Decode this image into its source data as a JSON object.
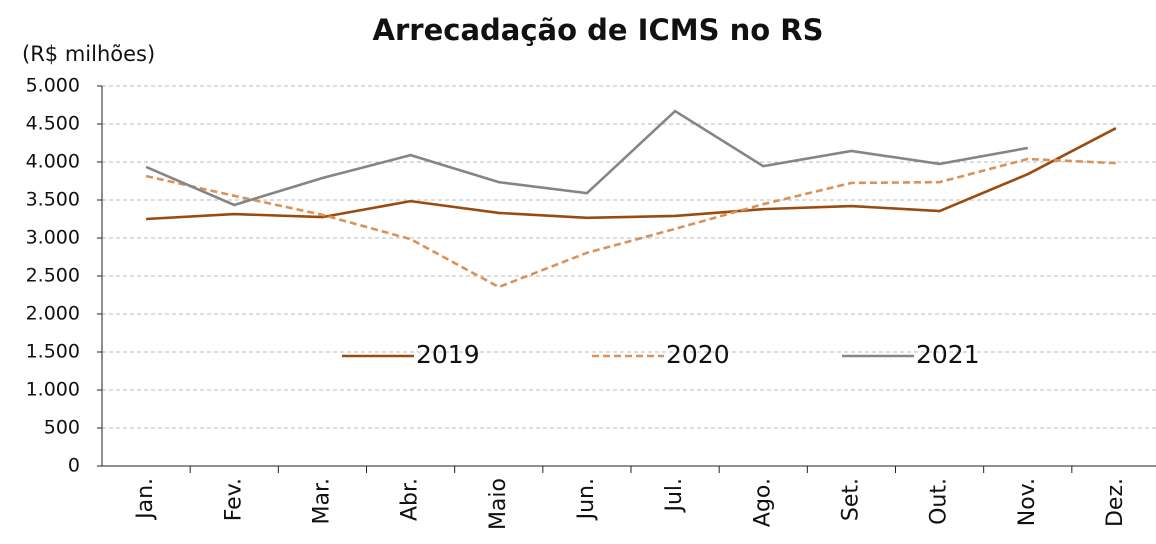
{
  "chart_data": {
    "type": "line",
    "title": "Arrecadação de ICMS no RS",
    "y_label": "(R$ milhões)",
    "categories": [
      "Jan.",
      "Fev.",
      "Mar.",
      "Abr.",
      "Maio",
      "Jun.",
      "Jul.",
      "Ago.",
      "Set.",
      "Out.",
      "Nov.",
      "Dez."
    ],
    "series": [
      {
        "name": "2019",
        "color": "#9a4c10",
        "dash": false,
        "values": [
          3250,
          3315,
          3275,
          3485,
          3330,
          3265,
          3290,
          3380,
          3420,
          3355,
          3840,
          4445
        ]
      },
      {
        "name": "2020",
        "color": "#d9925a",
        "dash": true,
        "values": [
          3815,
          3555,
          3305,
          2985,
          2355,
          2805,
          3120,
          3445,
          3725,
          3735,
          4040,
          3985
        ]
      },
      {
        "name": "2021",
        "color": "#858585",
        "dash": false,
        "values": [
          3935,
          3435,
          3790,
          4090,
          3735,
          3590,
          4670,
          3945,
          4145,
          3975,
          4185,
          null
        ]
      }
    ],
    "ylim": [
      0,
      5000
    ],
    "yticks": [
      0,
      500,
      {
        "value": 1000,
        "label": "1.000"
      },
      {
        "value": 1500,
        "label": "1.500"
      },
      {
        "value": 2000,
        "label": "2.000"
      },
      {
        "value": 2500,
        "label": "2.500"
      },
      {
        "value": 3000,
        "label": "3.000"
      },
      {
        "value": 3500,
        "label": "3.500"
      },
      {
        "value": 4000,
        "label": "4.000"
      },
      {
        "value": 4500,
        "label": "4.500"
      },
      {
        "value": 5000,
        "label": "5.000"
      }
    ],
    "grid": true,
    "legend": "center"
  }
}
